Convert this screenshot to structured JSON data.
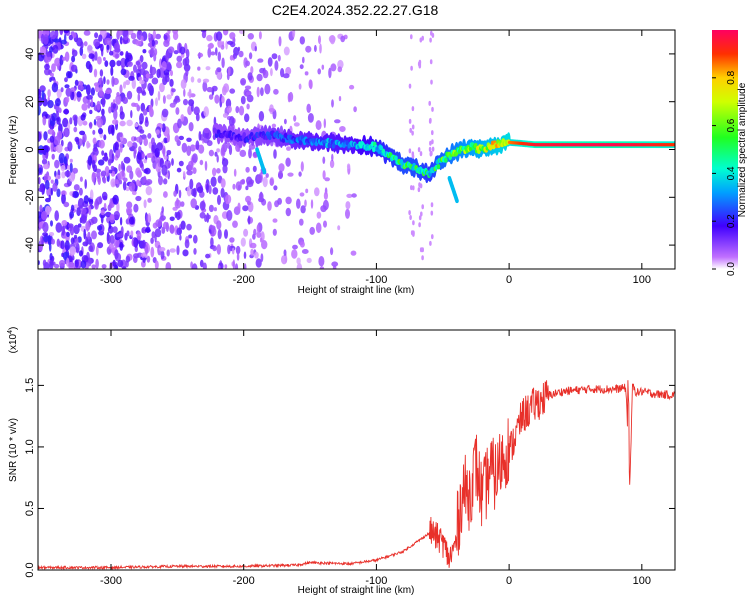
{
  "title": "C2E4.2024.352.22.27.G18",
  "chart_data": [
    {
      "type": "heatmap",
      "xlabel": "Height of straight line (km)",
      "ylabel": "Frequency (Hz)",
      "xlim": [
        -355,
        125
      ],
      "ylim": [
        -50,
        50
      ],
      "xticks": [
        "-300",
        "-200",
        "-100",
        "0",
        "100"
      ],
      "yticks": [
        "-40",
        "-20",
        "0",
        "20",
        "40"
      ],
      "colorbar": {
        "label": "Normalized spectral amplitude",
        "ticks": [
          "0.0",
          "0.2",
          "0.4",
          "0.6",
          "0.8"
        ],
        "range": [
          0,
          1
        ]
      },
      "ridge": {
        "x": [
          -220,
          -200,
          -180,
          -160,
          -140,
          -120,
          -100,
          -90,
          -80,
          -70,
          -60,
          -50,
          -40,
          -30,
          -20,
          -10,
          0,
          20,
          50,
          80,
          100,
          125
        ],
        "y": [
          7,
          5,
          6,
          4,
          3,
          2,
          1,
          -3,
          -6,
          -8,
          -10,
          -4,
          -1,
          1,
          0,
          2,
          3,
          2,
          2,
          2,
          2,
          2
        ],
        "amplitude": [
          0.2,
          0.2,
          0.25,
          0.3,
          0.35,
          0.35,
          0.45,
          0.5,
          0.55,
          0.55,
          0.5,
          0.6,
          0.65,
          0.7,
          0.75,
          0.8,
          0.85,
          0.95,
          0.97,
          0.98,
          0.95,
          0.9
        ]
      }
    },
    {
      "type": "line",
      "xlabel": "Height of straight line (km)",
      "ylabel": "SNR (10 * v/v)",
      "exponent_label": "(x10",
      "exponent_sup": "4",
      "exponent_close": ")",
      "xlim": [
        -355,
        125
      ],
      "ylim": [
        0,
        1.95
      ],
      "xticks": [
        "-300",
        "-200",
        "-100",
        "0",
        "100"
      ],
      "yticks": [
        "0.0",
        "0.5",
        "1.0",
        "1.5"
      ],
      "series": [
        {
          "color": "#e8302a",
          "x": [
            -355,
            -300,
            -250,
            -200,
            -160,
            -150,
            -120,
            -100,
            -80,
            -60,
            -50,
            -45,
            -40,
            -35,
            -30,
            -25,
            -20,
            -15,
            -10,
            -5,
            0,
            10,
            20,
            30,
            40,
            60,
            80,
            88,
            91,
            93,
            96,
            100,
            110,
            125
          ],
          "y": [
            0.02,
            0.02,
            0.03,
            0.03,
            0.04,
            0.06,
            0.05,
            0.08,
            0.15,
            0.3,
            0.2,
            0.06,
            0.2,
            0.6,
            0.55,
            0.8,
            0.5,
            0.75,
            0.7,
            0.85,
            0.95,
            1.25,
            1.35,
            1.42,
            1.45,
            1.47,
            1.47,
            1.48,
            0.68,
            1.5,
            1.44,
            1.45,
            1.43,
            1.42
          ]
        }
      ]
    }
  ]
}
